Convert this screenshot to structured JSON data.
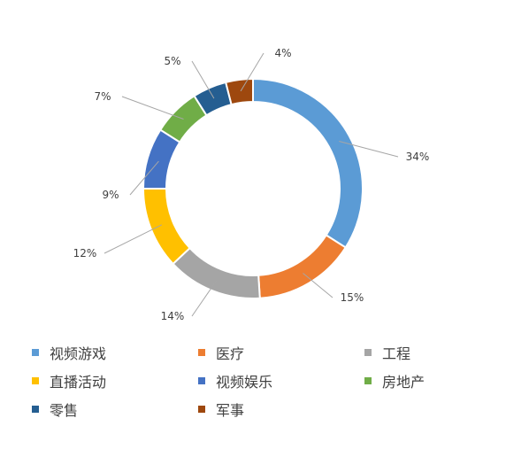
{
  "chart_data": {
    "type": "pie",
    "variant": "donut",
    "title": "",
    "categories": [
      "视频游戏",
      "医疗",
      "工程",
      "直播活动",
      "视频娱乐",
      "房地产",
      "零售",
      "军事"
    ],
    "values": [
      34,
      15,
      14,
      12,
      9,
      7,
      5,
      4
    ],
    "labels": [
      "34%",
      "15%",
      "14%",
      "12%",
      "9%",
      "7%",
      "5%",
      "4%"
    ],
    "colors": [
      "#5B9BD5",
      "#ED7D31",
      "#A5A5A5",
      "#FFC000",
      "#4472C4",
      "#70AD47",
      "#255E91",
      "#9E480E"
    ],
    "legend_position": "bottom"
  }
}
